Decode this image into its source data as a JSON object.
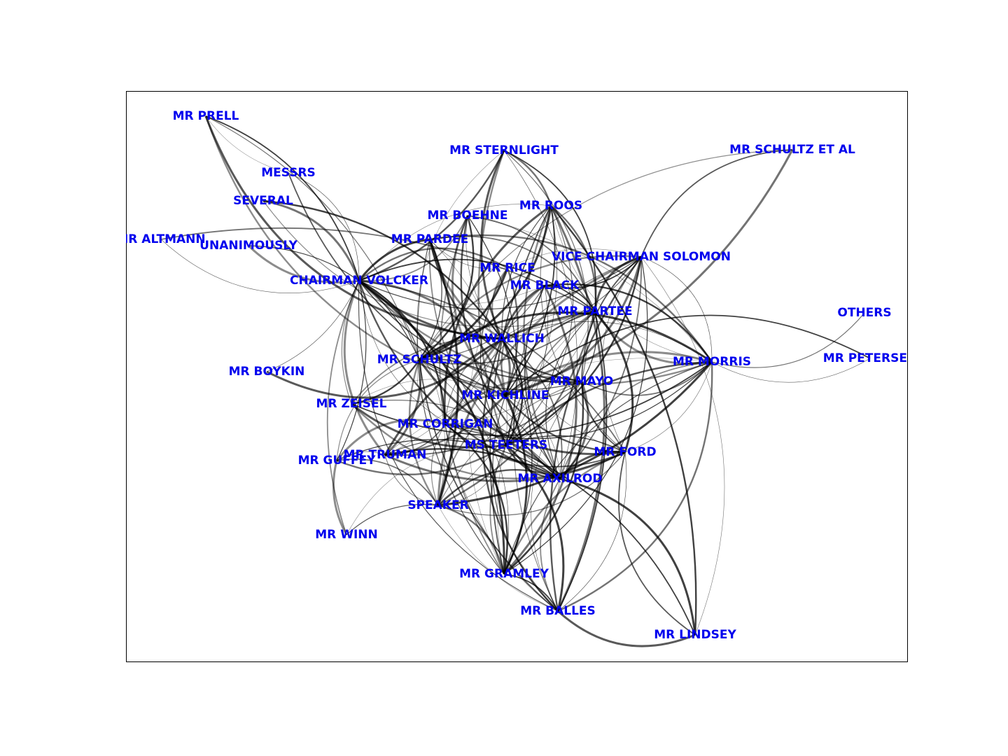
{
  "graph": {
    "type": "network",
    "label_color": "#0000ee",
    "edge_color": "#000000",
    "nodes": [
      {
        "id": "MR PRELL",
        "label": "MR PRELL"
      },
      {
        "id": "MESSRS",
        "label": "MESSRS"
      },
      {
        "id": "SEVERAL",
        "label": "SEVERAL"
      },
      {
        "id": "MR ALTMANN",
        "label": "MR ALTMANN"
      },
      {
        "id": "UNANIMOUSLY",
        "label": "UNANIMOUSLY"
      },
      {
        "id": "CHAIRMAN VOLCKER",
        "label": "CHAIRMAN VOLCKER"
      },
      {
        "id": "MR STERNLIGHT",
        "label": "MR STERNLIGHT"
      },
      {
        "id": "MR SCHULTZ ET AL",
        "label": "MR SCHULTZ ET AL"
      },
      {
        "id": "MR BOEHNE",
        "label": "MR BOEHNE"
      },
      {
        "id": "MR ROOS",
        "label": "MR ROOS"
      },
      {
        "id": "MR PARDEE",
        "label": "MR PARDEE"
      },
      {
        "id": "VICE CHAIRMAN SOLOMON",
        "label": "VICE CHAIRMAN SOLOMON"
      },
      {
        "id": "MR RICE",
        "label": "MR RICE"
      },
      {
        "id": "MR BLACK",
        "label": "MR BLACK"
      },
      {
        "id": "MR PARTEE",
        "label": "MR PARTEE"
      },
      {
        "id": "OTHERS",
        "label": "OTHERS"
      },
      {
        "id": "MR WALLICH",
        "label": "MR WALLICH"
      },
      {
        "id": "MR SCHULTZ",
        "label": "MR SCHULTZ"
      },
      {
        "id": "MR MORRIS",
        "label": "MR MORRIS"
      },
      {
        "id": "MR PETERSEN",
        "label": "MR PETERSEN"
      },
      {
        "id": "MR BOYKIN",
        "label": "MR BOYKIN"
      },
      {
        "id": "MR MAYO",
        "label": "MR MAYO"
      },
      {
        "id": "MR KICHLINE",
        "label": "MR KICHLINE"
      },
      {
        "id": "MR ZEISEL",
        "label": "MR ZEISEL"
      },
      {
        "id": "MR CORRIGAN",
        "label": "MR CORRIGAN"
      },
      {
        "id": "MS TEETERS",
        "label": "MS TEETERS"
      },
      {
        "id": "MR FORD",
        "label": "MR FORD"
      },
      {
        "id": "MR TRUMAN",
        "label": "MR TRUMAN"
      },
      {
        "id": "MR GUFFEY",
        "label": "MR GUFFEY"
      },
      {
        "id": "MR AXILROD",
        "label": "MR AXILROD"
      },
      {
        "id": "SPEAKER",
        "label": "SPEAKER"
      },
      {
        "id": "MR WINN",
        "label": "MR WINN"
      },
      {
        "id": "MR GRAMLEY",
        "label": "MR GRAMLEY"
      },
      {
        "id": "MR BALLES",
        "label": "MR BALLES"
      },
      {
        "id": "MR LINDSEY",
        "label": "MR LINDSEY"
      }
    ],
    "edges": [
      [
        "MR PRELL",
        "MESSRS"
      ],
      [
        "MR PRELL",
        "CHAIRMAN VOLCKER"
      ],
      [
        "MR PRELL",
        "MR WALLICH"
      ],
      [
        "MR PRELL",
        "MR SCHULTZ"
      ],
      [
        "MR PRELL",
        "MR KICHLINE"
      ],
      [
        "MESSRS",
        "CHAIRMAN VOLCKER"
      ],
      [
        "MESSRS",
        "MR KICHLINE"
      ],
      [
        "SEVERAL",
        "CHAIRMAN VOLCKER"
      ],
      [
        "SEVERAL",
        "MR PARTEE"
      ],
      [
        "SEVERAL",
        "MR WALLICH"
      ],
      [
        "MR ALTMANN",
        "CHAIRMAN VOLCKER"
      ],
      [
        "MR ALTMANN",
        "MR PARTEE"
      ],
      [
        "UNANIMOUSLY",
        "CHAIRMAN VOLCKER"
      ],
      [
        "UNANIMOUSLY",
        "MR SCHULTZ"
      ],
      [
        "CHAIRMAN VOLCKER",
        "MR STERNLIGHT"
      ],
      [
        "CHAIRMAN VOLCKER",
        "MR ROOS"
      ],
      [
        "CHAIRMAN VOLCKER",
        "MR BOEHNE"
      ],
      [
        "CHAIRMAN VOLCKER",
        "MR PARDEE"
      ],
      [
        "CHAIRMAN VOLCKER",
        "VICE CHAIRMAN SOLOMON"
      ],
      [
        "CHAIRMAN VOLCKER",
        "MR RICE"
      ],
      [
        "CHAIRMAN VOLCKER",
        "MR BLACK"
      ],
      [
        "CHAIRMAN VOLCKER",
        "MR PARTEE"
      ],
      [
        "CHAIRMAN VOLCKER",
        "MR WALLICH"
      ],
      [
        "CHAIRMAN VOLCKER",
        "MR SCHULTZ"
      ],
      [
        "CHAIRMAN VOLCKER",
        "MR MORRIS"
      ],
      [
        "CHAIRMAN VOLCKER",
        "MR BOYKIN"
      ],
      [
        "CHAIRMAN VOLCKER",
        "MR MAYO"
      ],
      [
        "CHAIRMAN VOLCKER",
        "MR KICHLINE"
      ],
      [
        "CHAIRMAN VOLCKER",
        "MR ZEISEL"
      ],
      [
        "CHAIRMAN VOLCKER",
        "MR CORRIGAN"
      ],
      [
        "CHAIRMAN VOLCKER",
        "MS TEETERS"
      ],
      [
        "CHAIRMAN VOLCKER",
        "MR FORD"
      ],
      [
        "CHAIRMAN VOLCKER",
        "MR TRUMAN"
      ],
      [
        "CHAIRMAN VOLCKER",
        "MR GUFFEY"
      ],
      [
        "CHAIRMAN VOLCKER",
        "MR AXILROD"
      ],
      [
        "CHAIRMAN VOLCKER",
        "SPEAKER"
      ],
      [
        "CHAIRMAN VOLCKER",
        "MR WINN"
      ],
      [
        "CHAIRMAN VOLCKER",
        "MR GRAMLEY"
      ],
      [
        "CHAIRMAN VOLCKER",
        "MR BALLES"
      ],
      [
        "MR STERNLIGHT",
        "MR ROOS"
      ],
      [
        "MR STERNLIGHT",
        "MR SCHULTZ"
      ],
      [
        "MR STERNLIGHT",
        "MR PARTEE"
      ],
      [
        "MR STERNLIGHT",
        "MR WALLICH"
      ],
      [
        "MR STERNLIGHT",
        "MR MAYO"
      ],
      [
        "MR STERNLIGHT",
        "MS TEETERS"
      ],
      [
        "MR STERNLIGHT",
        "MR AXILROD"
      ],
      [
        "MR SCHULTZ ET AL",
        "VICE CHAIRMAN SOLOMON"
      ],
      [
        "MR SCHULTZ ET AL",
        "MR KICHLINE"
      ],
      [
        "MR SCHULTZ ET AL",
        "MR SCHULTZ"
      ],
      [
        "MR BOEHNE",
        "MR SCHULTZ"
      ],
      [
        "MR BOEHNE",
        "MR WALLICH"
      ],
      [
        "MR BOEHNE",
        "MR PARTEE"
      ],
      [
        "MR BOEHNE",
        "MR KICHLINE"
      ],
      [
        "MR BOEHNE",
        "MS TEETERS"
      ],
      [
        "MR BOEHNE",
        "MR AXILROD"
      ],
      [
        "MR BOEHNE",
        "MR MORRIS"
      ],
      [
        "MR BOEHNE",
        "MR GRAMLEY"
      ],
      [
        "MR ROOS",
        "MR SCHULTZ"
      ],
      [
        "MR ROOS",
        "MR WALLICH"
      ],
      [
        "MR ROOS",
        "MR PARTEE"
      ],
      [
        "MR ROOS",
        "MR MORRIS"
      ],
      [
        "MR ROOS",
        "MR KICHLINE"
      ],
      [
        "MR ROOS",
        "MR CORRIGAN"
      ],
      [
        "MR ROOS",
        "MS TEETERS"
      ],
      [
        "MR ROOS",
        "MR AXILROD"
      ],
      [
        "MR ROOS",
        "SPEAKER"
      ],
      [
        "MR ROOS",
        "MR GRAMLEY"
      ],
      [
        "MR ROOS",
        "MR BALLES"
      ],
      [
        "MR ROOS",
        "MR FORD"
      ],
      [
        "MR ROOS",
        "MR LINDSEY"
      ],
      [
        "MR PARDEE",
        "MR RICE"
      ],
      [
        "MR PARDEE",
        "MR PARTEE"
      ],
      [
        "MR PARDEE",
        "MR WALLICH"
      ],
      [
        "MR PARDEE",
        "MR SCHULTZ"
      ],
      [
        "MR PARDEE",
        "MR MAYO"
      ],
      [
        "MR PARDEE",
        "MS TEETERS"
      ],
      [
        "MR PARDEE",
        "MR AXILROD"
      ],
      [
        "MR PARDEE",
        "SPEAKER"
      ],
      [
        "MR PARDEE",
        "MR GRAMLEY"
      ],
      [
        "MR PARDEE",
        "MR MORRIS"
      ],
      [
        "VICE CHAIRMAN SOLOMON",
        "MR RICE"
      ],
      [
        "VICE CHAIRMAN SOLOMON",
        "MR BLACK"
      ],
      [
        "VICE CHAIRMAN SOLOMON",
        "MR PARTEE"
      ],
      [
        "VICE CHAIRMAN SOLOMON",
        "MR WALLICH"
      ],
      [
        "VICE CHAIRMAN SOLOMON",
        "MR SCHULTZ"
      ],
      [
        "VICE CHAIRMAN SOLOMON",
        "MR MORRIS"
      ],
      [
        "VICE CHAIRMAN SOLOMON",
        "MR MAYO"
      ],
      [
        "VICE CHAIRMAN SOLOMON",
        "MR KICHLINE"
      ],
      [
        "VICE CHAIRMAN SOLOMON",
        "MR CORRIGAN"
      ],
      [
        "VICE CHAIRMAN SOLOMON",
        "MS TEETERS"
      ],
      [
        "VICE CHAIRMAN SOLOMON",
        "MR FORD"
      ],
      [
        "VICE CHAIRMAN SOLOMON",
        "MR AXILROD"
      ],
      [
        "VICE CHAIRMAN SOLOMON",
        "SPEAKER"
      ],
      [
        "VICE CHAIRMAN SOLOMON",
        "MR GRAMLEY"
      ],
      [
        "VICE CHAIRMAN SOLOMON",
        "MR BALLES"
      ],
      [
        "VICE CHAIRMAN SOLOMON",
        "MR LINDSEY"
      ],
      [
        "MR RICE",
        "MR WALLICH"
      ],
      [
        "MR RICE",
        "MR SCHULTZ"
      ],
      [
        "MR RICE",
        "MS TEETERS"
      ],
      [
        "MR RICE",
        "MR KICHLINE"
      ],
      [
        "MR RICE",
        "MR GRAMLEY"
      ],
      [
        "MR BLACK",
        "MR PARTEE"
      ],
      [
        "MR BLACK",
        "MR WALLICH"
      ],
      [
        "MR BLACK",
        "MR SCHULTZ"
      ],
      [
        "MR BLACK",
        "MR KICHLINE"
      ],
      [
        "MR BLACK",
        "MS TEETERS"
      ],
      [
        "MR BLACK",
        "MR AXILROD"
      ],
      [
        "MR BLACK",
        "MR GRAMLEY"
      ],
      [
        "MR BLACK",
        "MR BALLES"
      ],
      [
        "MR BLACK",
        "MR MORRIS"
      ],
      [
        "MR PARTEE",
        "MR WALLICH"
      ],
      [
        "MR PARTEE",
        "MR SCHULTZ"
      ],
      [
        "MR PARTEE",
        "MR MORRIS"
      ],
      [
        "MR PARTEE",
        "MR MAYO"
      ],
      [
        "MR PARTEE",
        "MR KICHLINE"
      ],
      [
        "MR PARTEE",
        "MR CORRIGAN"
      ],
      [
        "MR PARTEE",
        "MS TEETERS"
      ],
      [
        "MR PARTEE",
        "MR FORD"
      ],
      [
        "MR PARTEE",
        "MR AXILROD"
      ],
      [
        "MR PARTEE",
        "SPEAKER"
      ],
      [
        "MR PARTEE",
        "MR GRAMLEY"
      ],
      [
        "MR PARTEE",
        "MR BALLES"
      ],
      [
        "MR PARTEE",
        "MR TRUMAN"
      ],
      [
        "OTHERS",
        "MR MORRIS"
      ],
      [
        "MR WALLICH",
        "MR SCHULTZ"
      ],
      [
        "MR WALLICH",
        "MR MORRIS"
      ],
      [
        "MR WALLICH",
        "MR MAYO"
      ],
      [
        "MR WALLICH",
        "MR KICHLINE"
      ],
      [
        "MR WALLICH",
        "MR CORRIGAN"
      ],
      [
        "MR WALLICH",
        "MS TEETERS"
      ],
      [
        "MR WALLICH",
        "MR FORD"
      ],
      [
        "MR WALLICH",
        "MR AXILROD"
      ],
      [
        "MR WALLICH",
        "SPEAKER"
      ],
      [
        "MR WALLICH",
        "MR GRAMLEY"
      ],
      [
        "MR WALLICH",
        "MR BALLES"
      ],
      [
        "MR WALLICH",
        "MR TRUMAN"
      ],
      [
        "MR WALLICH",
        "MR ZEISEL"
      ],
      [
        "MR SCHULTZ",
        "MR MORRIS"
      ],
      [
        "MR SCHULTZ",
        "MR MAYO"
      ],
      [
        "MR SCHULTZ",
        "MR KICHLINE"
      ],
      [
        "MR SCHULTZ",
        "MR CORRIGAN"
      ],
      [
        "MR SCHULTZ",
        "MS TEETERS"
      ],
      [
        "MR SCHULTZ",
        "MR FORD"
      ],
      [
        "MR SCHULTZ",
        "MR AXILROD"
      ],
      [
        "MR SCHULTZ",
        "SPEAKER"
      ],
      [
        "MR SCHULTZ",
        "MR GRAMLEY"
      ],
      [
        "MR SCHULTZ",
        "MR BALLES"
      ],
      [
        "MR SCHULTZ",
        "MR TRUMAN"
      ],
      [
        "MR SCHULTZ",
        "MR GUFFEY"
      ],
      [
        "MR SCHULTZ",
        "MR ZEISEL"
      ],
      [
        "MR MORRIS",
        "MR PETERSEN"
      ],
      [
        "MR MORRIS",
        "MR MAYO"
      ],
      [
        "MR MORRIS",
        "MR KICHLINE"
      ],
      [
        "MR MORRIS",
        "MR CORRIGAN"
      ],
      [
        "MR MORRIS",
        "MS TEETERS"
      ],
      [
        "MR MORRIS",
        "MR FORD"
      ],
      [
        "MR MORRIS",
        "MR AXILROD"
      ],
      [
        "MR MORRIS",
        "SPEAKER"
      ],
      [
        "MR MORRIS",
        "MR GRAMLEY"
      ],
      [
        "MR MORRIS",
        "MR BALLES"
      ],
      [
        "MR MORRIS",
        "MR TRUMAN"
      ],
      [
        "MR MORRIS",
        "MR ZEISEL"
      ],
      [
        "MR BOYKIN",
        "MR WALLICH"
      ],
      [
        "MR MAYO",
        "MR KICHLINE"
      ],
      [
        "MR MAYO",
        "MR CORRIGAN"
      ],
      [
        "MR MAYO",
        "MS TEETERS"
      ],
      [
        "MR MAYO",
        "MR FORD"
      ],
      [
        "MR MAYO",
        "MR AXILROD"
      ],
      [
        "MR MAYO",
        "SPEAKER"
      ],
      [
        "MR MAYO",
        "MR GRAMLEY"
      ],
      [
        "MR MAYO",
        "MR BALLES"
      ],
      [
        "MR MAYO",
        "MR TRUMAN"
      ],
      [
        "MR KICHLINE",
        "MR CORRIGAN"
      ],
      [
        "MR KICHLINE",
        "MS TEETERS"
      ],
      [
        "MR KICHLINE",
        "MR FORD"
      ],
      [
        "MR KICHLINE",
        "MR AXILROD"
      ],
      [
        "MR KICHLINE",
        "SPEAKER"
      ],
      [
        "MR KICHLINE",
        "MR GRAMLEY"
      ],
      [
        "MR KICHLINE",
        "MR BALLES"
      ],
      [
        "MR KICHLINE",
        "MR TRUMAN"
      ],
      [
        "MR KICHLINE",
        "MR ZEISEL"
      ],
      [
        "MR KICHLINE",
        "MR PETERSEN"
      ],
      [
        "MR ZEISEL",
        "MS TEETERS"
      ],
      [
        "MR ZEISEL",
        "MR AXILROD"
      ],
      [
        "MR ZEISEL",
        "MR FORD"
      ],
      [
        "MR CORRIGAN",
        "MS TEETERS"
      ],
      [
        "MR CORRIGAN",
        "MR FORD"
      ],
      [
        "MR CORRIGAN",
        "MR AXILROD"
      ],
      [
        "MR CORRIGAN",
        "SPEAKER"
      ],
      [
        "MR CORRIGAN",
        "MR GRAMLEY"
      ],
      [
        "MR CORRIGAN",
        "MR BALLES"
      ],
      [
        "MR CORRIGAN",
        "MR TRUMAN"
      ],
      [
        "MR CORRIGAN",
        "MR GUFFEY"
      ],
      [
        "MS TEETERS",
        "MR FORD"
      ],
      [
        "MS TEETERS",
        "MR AXILROD"
      ],
      [
        "MS TEETERS",
        "SPEAKER"
      ],
      [
        "MS TEETERS",
        "MR GRAMLEY"
      ],
      [
        "MS TEETERS",
        "MR BALLES"
      ],
      [
        "MS TEETERS",
        "MR TRUMAN"
      ],
      [
        "MS TEETERS",
        "MR GUFFEY"
      ],
      [
        "MS TEETERS",
        "MR WINN"
      ],
      [
        "MS TEETERS",
        "MR LINDSEY"
      ],
      [
        "MR FORD",
        "MR AXILROD"
      ],
      [
        "MR FORD",
        "SPEAKER"
      ],
      [
        "MR FORD",
        "MR GRAMLEY"
      ],
      [
        "MR FORD",
        "MR BALLES"
      ],
      [
        "MR FORD",
        "MR LINDSEY"
      ],
      [
        "MR FORD",
        "MR TRUMAN"
      ],
      [
        "MR TRUMAN",
        "SPEAKER"
      ],
      [
        "MR TRUMAN",
        "MR AXILROD"
      ],
      [
        "MR TRUMAN",
        "MR GUFFEY"
      ],
      [
        "MR GUFFEY",
        "SPEAKER"
      ],
      [
        "MR GUFFEY",
        "MR WINN"
      ],
      [
        "MR GUFFEY",
        "MR AXILROD"
      ],
      [
        "MR AXILROD",
        "SPEAKER"
      ],
      [
        "MR AXILROD",
        "MR GRAMLEY"
      ],
      [
        "MR AXILROD",
        "MR BALLES"
      ],
      [
        "MR AXILROD",
        "MR LINDSEY"
      ],
      [
        "SPEAKER",
        "MR WINN"
      ],
      [
        "SPEAKER",
        "MR GRAMLEY"
      ],
      [
        "SPEAKER",
        "MR BALLES"
      ],
      [
        "MR GRAMLEY",
        "MR BALLES"
      ],
      [
        "MR BALLES",
        "MR LINDSEY"
      ]
    ]
  }
}
